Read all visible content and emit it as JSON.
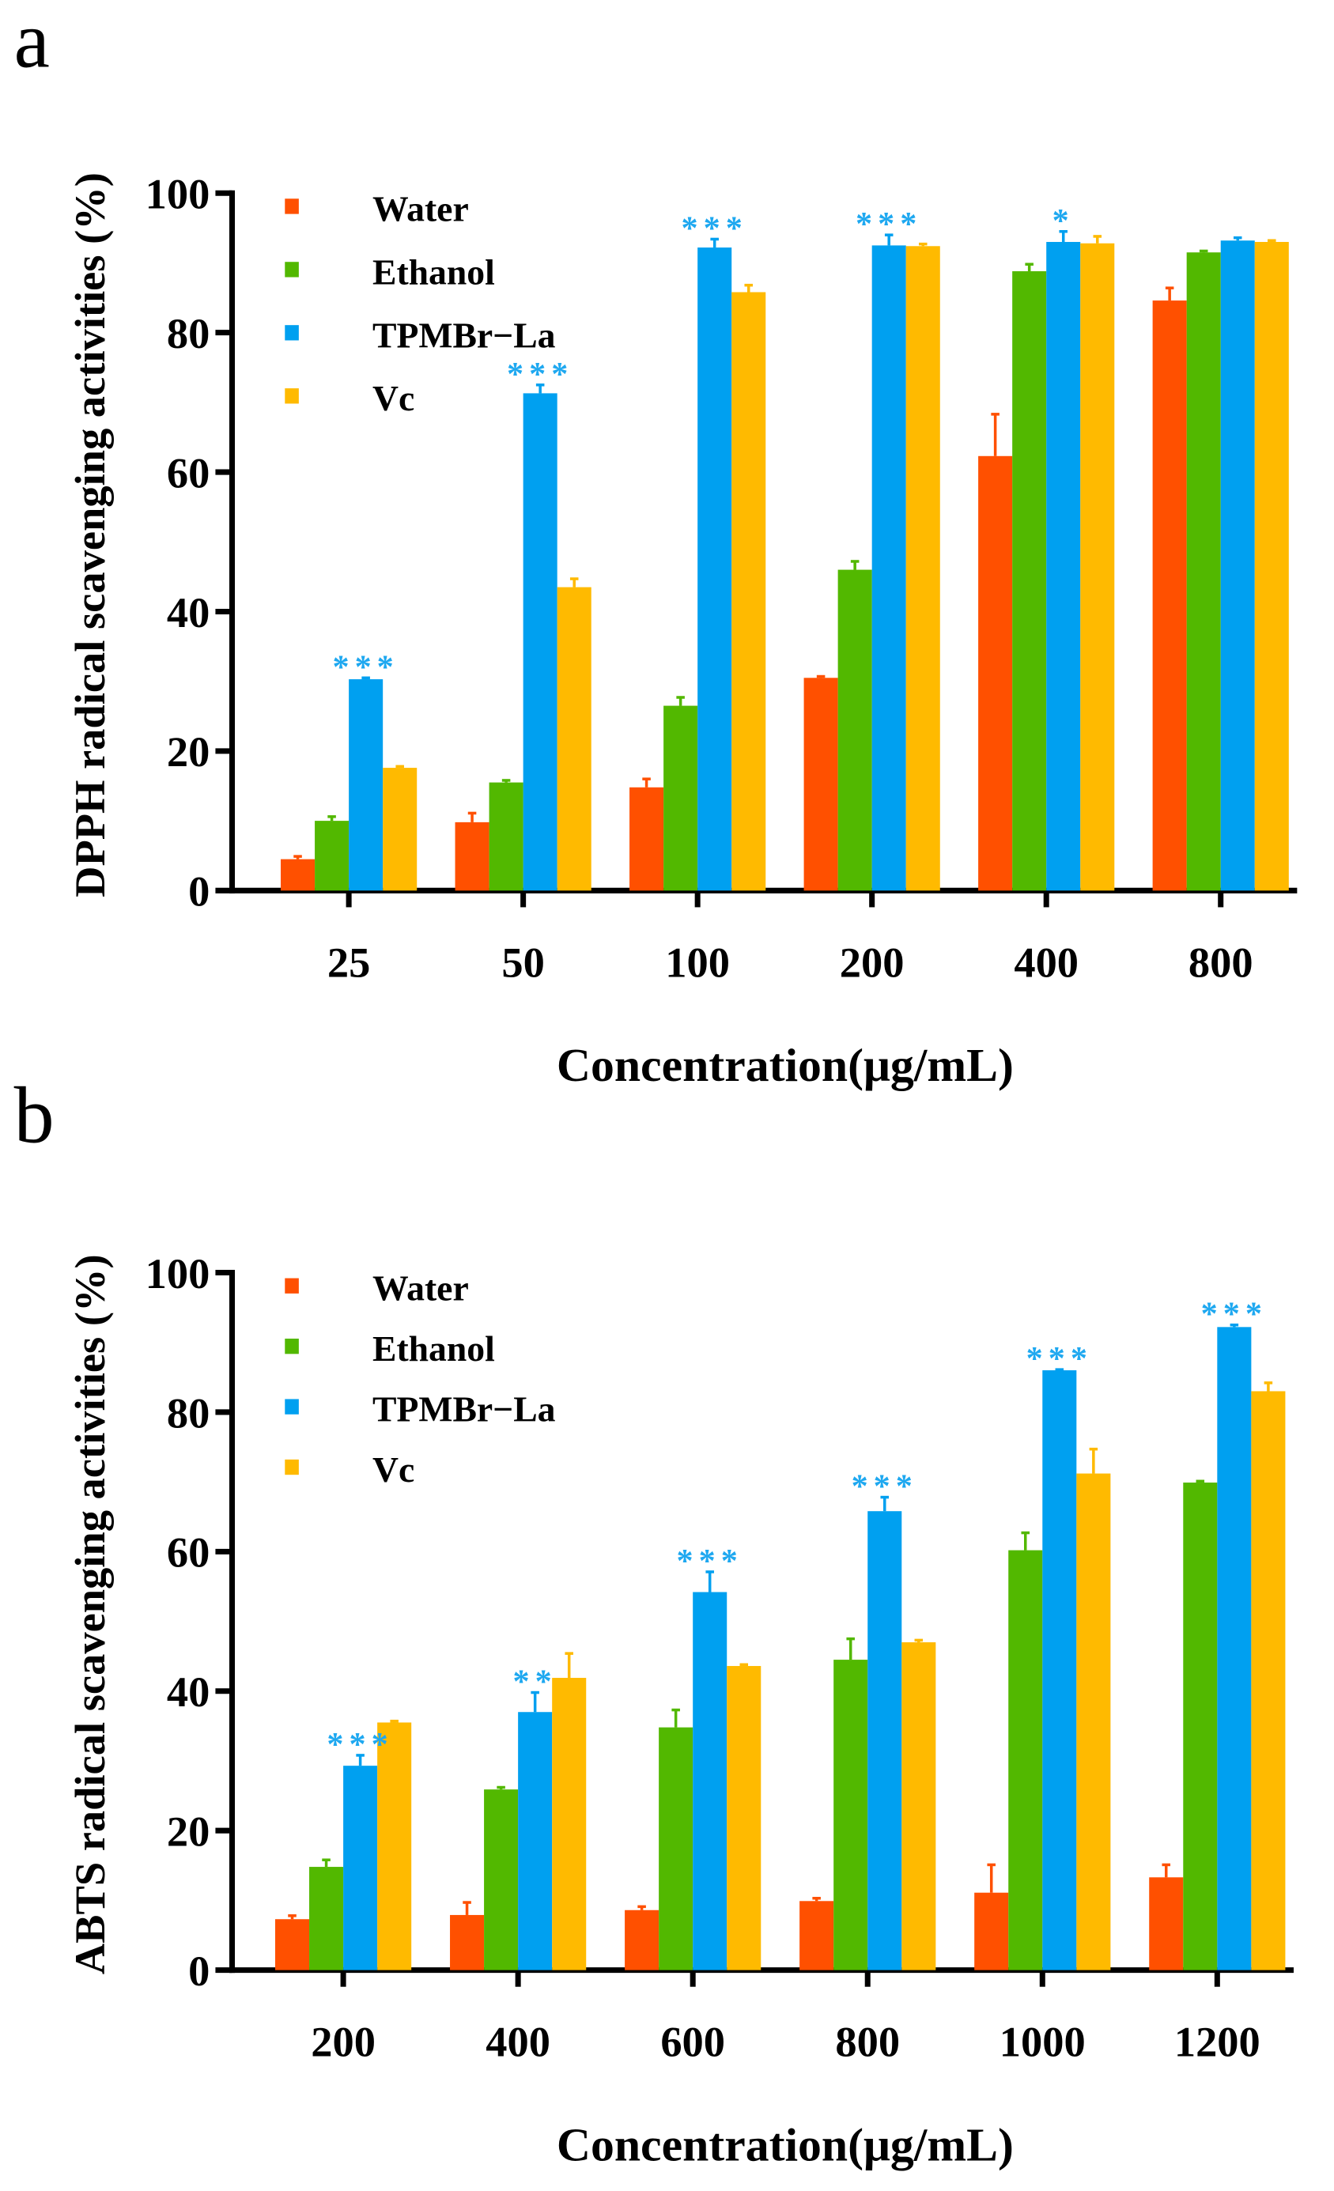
{
  "colors": {
    "Water": "#FF5000",
    "Ethanol": "#52B800",
    "TPMBr−La": "#00A0F0",
    "Vc": "#FFBA00",
    "significance": "#1EA8F0"
  },
  "chart_data": [
    {
      "panel_label": "a",
      "type": "bar",
      "title": "",
      "xlabel": "Concentration(μg/mL)",
      "ylabel": "DPPH radical scavenging activities (%)",
      "ylim": [
        0,
        100
      ],
      "yticks": [
        "0",
        "20",
        "40",
        "60",
        "80",
        "100"
      ],
      "categories": [
        "25",
        "50",
        "100",
        "200",
        "400",
        "800"
      ],
      "legend_position": "top-left",
      "series": [
        {
          "name": "Water",
          "values": [
            4.5,
            9.8,
            14.8,
            30.5,
            62.3,
            84.6
          ],
          "errors": [
            0.4,
            1.3,
            1.2,
            0.2,
            6.0,
            1.8
          ]
        },
        {
          "name": "Ethanol",
          "values": [
            10.0,
            15.5,
            26.5,
            46.0,
            88.8,
            91.5
          ],
          "errors": [
            0.6,
            0.3,
            1.2,
            1.2,
            1.0,
            0.2
          ]
        },
        {
          "name": "TPMBr−La",
          "values": [
            30.3,
            71.3,
            92.2,
            92.5,
            93.0,
            93.2
          ],
          "errors": [
            0.2,
            1.2,
            1.2,
            1.5,
            1.5,
            0.4
          ]
        },
        {
          "name": "Vc",
          "values": [
            17.6,
            43.5,
            85.8,
            92.4,
            92.8,
            93.0
          ],
          "errors": [
            0.2,
            1.2,
            1.0,
            0.3,
            1.0,
            0.2
          ]
        }
      ],
      "significance": [
        "***",
        "***",
        "***",
        "***",
        "*",
        ""
      ]
    },
    {
      "panel_label": "b",
      "type": "bar",
      "title": "",
      "xlabel": "Concentration(μg/mL)",
      "ylabel": "ABTS radical scavenging activities (%)",
      "ylim": [
        0,
        100
      ],
      "yticks": [
        "0",
        "20",
        "40",
        "60",
        "80",
        "100"
      ],
      "categories": [
        "200",
        "400",
        "600",
        "800",
        "1000",
        "1200"
      ],
      "legend_position": "top-left",
      "series": [
        {
          "name": "Water",
          "values": [
            7.3,
            7.9,
            8.6,
            9.9,
            11.1,
            13.3
          ],
          "errors": [
            0.5,
            1.8,
            0.5,
            0.4,
            4.0,
            1.8
          ]
        },
        {
          "name": "Ethanol",
          "values": [
            14.8,
            25.9,
            34.8,
            44.5,
            60.2,
            69.9
          ],
          "errors": [
            1.0,
            0.3,
            2.5,
            3.0,
            2.5,
            0.2
          ]
        },
        {
          "name": "TPMBr−La",
          "values": [
            29.3,
            37.0,
            54.2,
            65.8,
            86.0,
            92.2
          ],
          "errors": [
            1.5,
            2.8,
            2.9,
            2.0,
            0.1,
            0.3
          ]
        },
        {
          "name": "Vc",
          "values": [
            35.5,
            41.9,
            43.6,
            47.0,
            71.2,
            83.0
          ],
          "errors": [
            0.2,
            3.5,
            0.2,
            0.3,
            3.5,
            1.2
          ]
        }
      ],
      "significance": [
        "***",
        "**",
        "***",
        "***",
        "***",
        "***"
      ]
    }
  ]
}
